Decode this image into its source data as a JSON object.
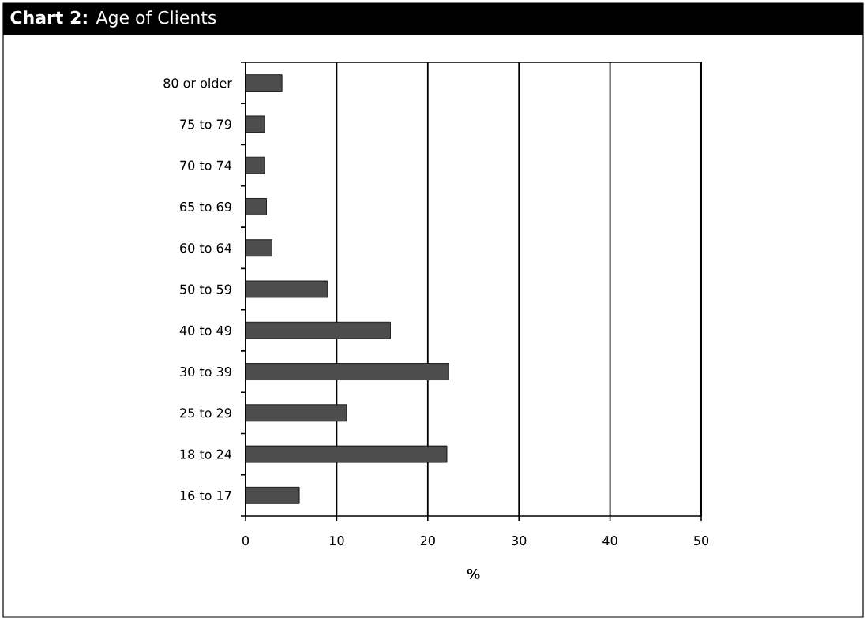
{
  "chart_data": {
    "type": "bar",
    "orientation": "horizontal",
    "title": "**Chart 2:** Age of Clients",
    "xlabel": "%",
    "categories": [
      "80 or older",
      "75 to 79",
      "70 to 74",
      "65 to 69",
      "60 to 64",
      "50 to 59",
      "40 to 49",
      "30 to 39",
      "25 to 29",
      "18 to 24",
      "16 to 17"
    ],
    "values": [
      4.0,
      2.1,
      2.1,
      2.3,
      2.9,
      9.0,
      15.9,
      22.3,
      11.1,
      22.1,
      5.9
    ],
    "color": "#4d4d4d",
    "xlim": [
      0,
      50
    ],
    "xticks": [
      0,
      10,
      20,
      30,
      40,
      50
    ],
    "grid": "x"
  }
}
